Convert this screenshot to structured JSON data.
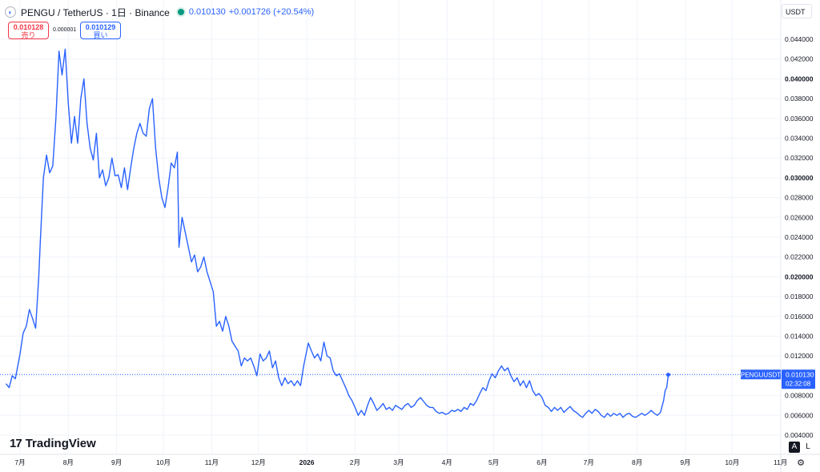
{
  "header": {
    "logo_icon": "pengu-logo-icon",
    "symbol_title": "PENGU / TetherUS · 1日 · Binance",
    "status_dot_color": "#089981",
    "last_price": "0.010130",
    "change": "+0.001726 (+20.54%)"
  },
  "trade": {
    "sell_price": "0.010128",
    "sell_label": "売り",
    "spread": "0.000001",
    "buy_price": "0.010129",
    "buy_label": "買い"
  },
  "currency_select": "USDT",
  "brand": {
    "icon": "tradingview-logo-icon",
    "mark": "17",
    "name": "TradingView"
  },
  "scale_buttons": {
    "auto": "A",
    "log": "L",
    "settings_icon": "gear-icon"
  },
  "colors": {
    "line": "#2962ff",
    "grid": "#f0f3fa",
    "price_label_bg": "#2962ff",
    "last_price_line": "#2962ff"
  },
  "chart_data": {
    "type": "line",
    "title": "PENGU / TetherUS · 1日 · Binance",
    "xlabel": "",
    "ylabel": "",
    "grid": true,
    "ylim": [
      0.002,
      0.046
    ],
    "y_ticks": [
      "0.004000",
      "0.006000",
      "0.008000",
      "0.010000",
      "0.012000",
      "0.014000",
      "0.016000",
      "0.018000",
      "0.020000",
      "0.022000",
      "0.024000",
      "0.026000",
      "0.028000",
      "0.030000",
      "0.032000",
      "0.034000",
      "0.036000",
      "0.038000",
      "0.040000",
      "0.042000",
      "0.044000"
    ],
    "y_ticks_bold": [
      "0.010000",
      "0.020000",
      "0.030000",
      "0.040000"
    ],
    "x_ticks": [
      {
        "label": "7月",
        "date": "2025-07-01"
      },
      {
        "label": "8月",
        "date": "2025-08-01"
      },
      {
        "label": "9月",
        "date": "2025-09-01"
      },
      {
        "label": "10月",
        "date": "2025-10-01"
      },
      {
        "label": "11月",
        "date": "2025-11-01"
      },
      {
        "label": "12月",
        "date": "2025-12-01"
      },
      {
        "label": "2026",
        "date": "2026-01-01",
        "bold": true
      },
      {
        "label": "2月",
        "date": "2026-02-01"
      },
      {
        "label": "3月",
        "date": "2026-03-01"
      },
      {
        "label": "4月",
        "date": "2026-04-01"
      },
      {
        "label": "5月",
        "date": "2026-05-01"
      },
      {
        "label": "6月",
        "date": "2026-06-01"
      },
      {
        "label": "7月",
        "date": "2026-07-01"
      },
      {
        "label": "8月",
        "date": "2026-08-01"
      },
      {
        "label": "9月",
        "date": "2026-09-01"
      },
      {
        "label": "10月",
        "date": "2026-10-01"
      },
      {
        "label": "11月",
        "date": "2026-11-01"
      }
    ],
    "series": [
      {
        "name": "PENGUUSDT",
        "points": [
          [
            "2025-06-22",
            0.0092
          ],
          [
            "2025-06-24",
            0.0088
          ],
          [
            "2025-06-26",
            0.01
          ],
          [
            "2025-06-28",
            0.0097
          ],
          [
            "2025-07-01",
            0.0122
          ],
          [
            "2025-07-03",
            0.0143
          ],
          [
            "2025-07-05",
            0.015
          ],
          [
            "2025-07-07",
            0.0167
          ],
          [
            "2025-07-09",
            0.0158
          ],
          [
            "2025-07-11",
            0.0148
          ],
          [
            "2025-07-13",
            0.02
          ],
          [
            "2025-07-14",
            0.0235
          ],
          [
            "2025-07-16",
            0.03
          ],
          [
            "2025-07-18",
            0.0323
          ],
          [
            "2025-07-20",
            0.0305
          ],
          [
            "2025-07-22",
            0.0312
          ],
          [
            "2025-07-24",
            0.036
          ],
          [
            "2025-07-26",
            0.0428
          ],
          [
            "2025-07-28",
            0.0404
          ],
          [
            "2025-07-30",
            0.043
          ],
          [
            "2025-08-01",
            0.0375
          ],
          [
            "2025-08-03",
            0.0335
          ],
          [
            "2025-08-05",
            0.0362
          ],
          [
            "2025-08-07",
            0.0335
          ],
          [
            "2025-08-09",
            0.038
          ],
          [
            "2025-08-11",
            0.04
          ],
          [
            "2025-08-13",
            0.0355
          ],
          [
            "2025-08-15",
            0.033
          ],
          [
            "2025-08-17",
            0.0318
          ],
          [
            "2025-08-19",
            0.0345
          ],
          [
            "2025-08-21",
            0.03
          ],
          [
            "2025-08-23",
            0.0308
          ],
          [
            "2025-08-25",
            0.0292
          ],
          [
            "2025-08-27",
            0.03
          ],
          [
            "2025-08-29",
            0.032
          ],
          [
            "2025-08-31",
            0.0302
          ],
          [
            "2025-09-02",
            0.0303
          ],
          [
            "2025-09-04",
            0.029
          ],
          [
            "2025-09-06",
            0.031
          ],
          [
            "2025-09-08",
            0.0288
          ],
          [
            "2025-09-10",
            0.031
          ],
          [
            "2025-09-12",
            0.033
          ],
          [
            "2025-09-14",
            0.0345
          ],
          [
            "2025-09-16",
            0.0355
          ],
          [
            "2025-09-18",
            0.0345
          ],
          [
            "2025-09-20",
            0.0342
          ],
          [
            "2025-09-22",
            0.037
          ],
          [
            "2025-09-24",
            0.038
          ],
          [
            "2025-09-26",
            0.033
          ],
          [
            "2025-09-28",
            0.03
          ],
          [
            "2025-09-30",
            0.028
          ],
          [
            "2025-10-02",
            0.027
          ],
          [
            "2025-10-04",
            0.029
          ],
          [
            "2025-10-06",
            0.0315
          ],
          [
            "2025-10-08",
            0.031
          ],
          [
            "2025-10-10",
            0.0326
          ],
          [
            "2025-10-11",
            0.023
          ],
          [
            "2025-10-13",
            0.026
          ],
          [
            "2025-10-15",
            0.0245
          ],
          [
            "2025-10-17",
            0.023
          ],
          [
            "2025-10-19",
            0.0215
          ],
          [
            "2025-10-21",
            0.0222
          ],
          [
            "2025-10-23",
            0.0205
          ],
          [
            "2025-10-25",
            0.021
          ],
          [
            "2025-10-27",
            0.022
          ],
          [
            "2025-10-29",
            0.0205
          ],
          [
            "2025-10-31",
            0.0195
          ],
          [
            "2025-11-02",
            0.0185
          ],
          [
            "2025-11-04",
            0.015
          ],
          [
            "2025-11-06",
            0.0155
          ],
          [
            "2025-11-08",
            0.0145
          ],
          [
            "2025-11-10",
            0.016
          ],
          [
            "2025-11-12",
            0.015
          ],
          [
            "2025-11-14",
            0.0135
          ],
          [
            "2025-11-16",
            0.013
          ],
          [
            "2025-11-18",
            0.0125
          ],
          [
            "2025-11-20",
            0.011
          ],
          [
            "2025-11-22",
            0.0118
          ],
          [
            "2025-11-24",
            0.0115
          ],
          [
            "2025-11-26",
            0.0118
          ],
          [
            "2025-11-28",
            0.011
          ],
          [
            "2025-11-30",
            0.01
          ],
          [
            "2025-12-02",
            0.0122
          ],
          [
            "2025-12-04",
            0.0115
          ],
          [
            "2025-12-06",
            0.0118
          ],
          [
            "2025-12-08",
            0.0125
          ],
          [
            "2025-12-10",
            0.0108
          ],
          [
            "2025-12-12",
            0.0115
          ],
          [
            "2025-12-14",
            0.0098
          ],
          [
            "2025-12-16",
            0.009
          ],
          [
            "2025-12-18",
            0.0098
          ],
          [
            "2025-12-20",
            0.0092
          ],
          [
            "2025-12-22",
            0.0095
          ],
          [
            "2025-12-24",
            0.009
          ],
          [
            "2025-12-26",
            0.0095
          ],
          [
            "2025-12-28",
            0.009
          ],
          [
            "2025-12-30",
            0.011
          ],
          [
            "2026-01-02",
            0.0133
          ],
          [
            "2026-01-04",
            0.0125
          ],
          [
            "2026-01-06",
            0.0118
          ],
          [
            "2026-01-08",
            0.0122
          ],
          [
            "2026-01-10",
            0.0115
          ],
          [
            "2026-01-12",
            0.0134
          ],
          [
            "2026-01-14",
            0.012
          ],
          [
            "2026-01-16",
            0.0118
          ],
          [
            "2026-01-18",
            0.0105
          ],
          [
            "2026-01-20",
            0.01
          ],
          [
            "2026-01-22",
            0.0102
          ],
          [
            "2026-01-24",
            0.0095
          ],
          [
            "2026-01-26",
            0.0088
          ],
          [
            "2026-01-28",
            0.008
          ],
          [
            "2026-01-30",
            0.0075
          ],
          [
            "2026-02-01",
            0.0068
          ],
          [
            "2026-02-03",
            0.006
          ],
          [
            "2026-02-05",
            0.0065
          ],
          [
            "2026-02-07",
            0.006
          ],
          [
            "2026-02-09",
            0.007
          ],
          [
            "2026-02-11",
            0.0078
          ],
          [
            "2026-02-13",
            0.0072
          ],
          [
            "2026-02-15",
            0.0065
          ],
          [
            "2026-02-17",
            0.0068
          ],
          [
            "2026-02-19",
            0.0072
          ],
          [
            "2026-02-21",
            0.0066
          ],
          [
            "2026-02-23",
            0.0068
          ],
          [
            "2026-02-25",
            0.0065
          ],
          [
            "2026-02-27",
            0.007
          ],
          [
            "2026-03-01",
            0.0068
          ],
          [
            "2026-03-03",
            0.0066
          ],
          [
            "2026-03-05",
            0.007
          ],
          [
            "2026-03-07",
            0.0072
          ],
          [
            "2026-03-09",
            0.0068
          ],
          [
            "2026-03-11",
            0.007
          ],
          [
            "2026-03-13",
            0.0075
          ],
          [
            "2026-03-15",
            0.0078
          ],
          [
            "2026-03-17",
            0.0074
          ],
          [
            "2026-03-19",
            0.007
          ],
          [
            "2026-03-21",
            0.0068
          ],
          [
            "2026-03-23",
            0.0068
          ],
          [
            "2026-03-25",
            0.0064
          ],
          [
            "2026-03-27",
            0.0062
          ],
          [
            "2026-03-29",
            0.0063
          ],
          [
            "2026-03-31",
            0.0061
          ],
          [
            "2026-04-02",
            0.0062
          ],
          [
            "2026-04-04",
            0.0065
          ],
          [
            "2026-04-06",
            0.0064
          ],
          [
            "2026-04-08",
            0.0066
          ],
          [
            "2026-04-10",
            0.0064
          ],
          [
            "2026-04-12",
            0.0068
          ],
          [
            "2026-04-14",
            0.0066
          ],
          [
            "2026-04-16",
            0.0072
          ],
          [
            "2026-04-18",
            0.007
          ],
          [
            "2026-04-20",
            0.0075
          ],
          [
            "2026-04-22",
            0.0082
          ],
          [
            "2026-04-24",
            0.0088
          ],
          [
            "2026-04-26",
            0.0085
          ],
          [
            "2026-04-28",
            0.0095
          ],
          [
            "2026-04-30",
            0.0102
          ],
          [
            "2026-05-02",
            0.0098
          ],
          [
            "2026-05-04",
            0.0105
          ],
          [
            "2026-05-06",
            0.011
          ],
          [
            "2026-05-08",
            0.0105
          ],
          [
            "2026-05-10",
            0.0108
          ],
          [
            "2026-05-12",
            0.01
          ],
          [
            "2026-05-14",
            0.0094
          ],
          [
            "2026-05-16",
            0.0098
          ],
          [
            "2026-05-18",
            0.009
          ],
          [
            "2026-05-20",
            0.0095
          ],
          [
            "2026-05-22",
            0.0088
          ],
          [
            "2026-05-24",
            0.0095
          ],
          [
            "2026-05-26",
            0.0085
          ],
          [
            "2026-05-28",
            0.008
          ],
          [
            "2026-05-30",
            0.0082
          ],
          [
            "2026-06-01",
            0.0078
          ],
          [
            "2026-06-03",
            0.007
          ],
          [
            "2026-06-05",
            0.0068
          ],
          [
            "2026-06-07",
            0.0064
          ],
          [
            "2026-06-09",
            0.0068
          ],
          [
            "2026-06-11",
            0.0065
          ],
          [
            "2026-06-13",
            0.0068
          ],
          [
            "2026-06-15",
            0.0063
          ],
          [
            "2026-06-17",
            0.0066
          ],
          [
            "2026-06-19",
            0.0069
          ],
          [
            "2026-06-21",
            0.0065
          ],
          [
            "2026-06-23",
            0.0063
          ],
          [
            "2026-06-25",
            0.006
          ],
          [
            "2026-06-27",
            0.0058
          ],
          [
            "2026-06-29",
            0.0062
          ],
          [
            "2026-07-01",
            0.0065
          ],
          [
            "2026-07-03",
            0.0062
          ],
          [
            "2026-07-05",
            0.0066
          ],
          [
            "2026-07-07",
            0.0064
          ],
          [
            "2026-07-09",
            0.006
          ],
          [
            "2026-07-11",
            0.0058
          ],
          [
            "2026-07-13",
            0.0062
          ],
          [
            "2026-07-15",
            0.0059
          ],
          [
            "2026-07-17",
            0.0062
          ],
          [
            "2026-07-19",
            0.006
          ],
          [
            "2026-07-21",
            0.0062
          ],
          [
            "2026-07-23",
            0.0058
          ],
          [
            "2026-07-25",
            0.0061
          ],
          [
            "2026-07-27",
            0.0062
          ],
          [
            "2026-07-29",
            0.0059
          ],
          [
            "2026-07-31",
            0.0058
          ],
          [
            "2026-08-02",
            0.006
          ],
          [
            "2026-08-04",
            0.0062
          ],
          [
            "2026-08-06",
            0.006
          ],
          [
            "2026-08-08",
            0.0062
          ],
          [
            "2026-08-10",
            0.0065
          ],
          [
            "2026-08-12",
            0.0062
          ],
          [
            "2026-08-14",
            0.006
          ],
          [
            "2026-08-16",
            0.0063
          ],
          [
            "2026-08-18",
            0.0075
          ],
          [
            "2026-08-19",
            0.0085
          ],
          [
            "2026-08-20",
            0.0088
          ],
          [
            "2026-08-21",
            0.0101
          ]
        ]
      }
    ],
    "last_price_label": {
      "name": "PENGUUSDT",
      "price": "0.010130",
      "countdown": "02:32:08",
      "value": 0.01013
    }
  }
}
